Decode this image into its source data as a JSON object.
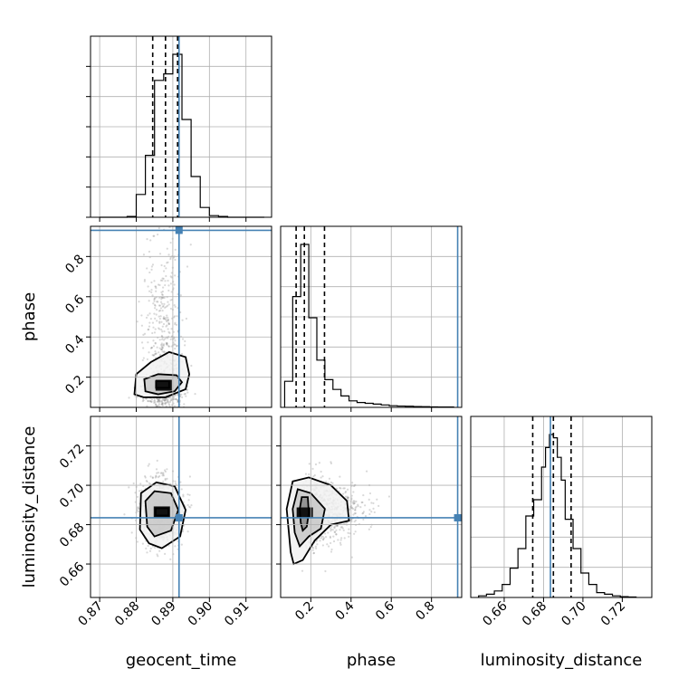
{
  "chart_data": {
    "type": "corner",
    "parameters": [
      "geocent_time",
      "phase",
      "luminosity_distance"
    ],
    "axis_labels": {
      "geocent_time": "geocent_time",
      "phase": "phase",
      "luminosity_distance": "luminosity_distance"
    },
    "ranges": {
      "geocent_time": [
        0.8675,
        0.917
      ],
      "phase": [
        0.05,
        0.95
      ],
      "luminosity_distance": [
        0.643,
        0.735
      ]
    },
    "ticks": {
      "geocent_time": [
        0.87,
        0.88,
        0.89,
        0.9,
        0.91
      ],
      "phase": [
        0.2,
        0.4,
        0.6,
        0.8
      ],
      "luminosity_distance": [
        0.66,
        0.68,
        0.7,
        0.72
      ]
    },
    "tick_labels": {
      "geocent_time": [
        "0.87",
        "0.88",
        "0.89",
        "0.90",
        "0.91"
      ],
      "phase": [
        "0.2",
        "0.4",
        "0.6",
        "0.8"
      ],
      "luminosity_distance": [
        "0.66",
        "0.68",
        "0.70",
        "0.72"
      ]
    },
    "truths": {
      "geocent_time": 0.8917,
      "phase": 0.93,
      "luminosity_distance": 0.6835
    },
    "quantiles": {
      "geocent_time": [
        0.8845,
        0.888,
        0.8913
      ],
      "phase": [
        0.127,
        0.168,
        0.268
      ],
      "luminosity_distance": [
        0.6745,
        0.685,
        0.694
      ]
    },
    "histograms": {
      "geocent_time": {
        "bin_edges": [
          0.87,
          0.8725,
          0.875,
          0.8775,
          0.88,
          0.8825,
          0.885,
          0.8875,
          0.89,
          0.8925,
          0.895,
          0.8975,
          0.9,
          0.9025,
          0.905,
          0.9075,
          0.91,
          0.9125,
          0.915
        ],
        "counts": [
          0.0,
          0.0,
          0.0,
          0.005,
          0.14,
          0.38,
          0.84,
          0.88,
          1.0,
          0.6,
          0.25,
          0.06,
          0.01,
          0.005,
          0.0,
          0.0,
          0.0,
          0.0
        ],
        "ymax": 1.0
      },
      "phase": {
        "bin_edges": [
          0.07,
          0.11,
          0.15,
          0.19,
          0.23,
          0.27,
          0.31,
          0.35,
          0.39,
          0.43,
          0.47,
          0.51,
          0.55,
          0.59,
          0.63,
          0.67,
          0.71,
          0.75,
          0.79,
          0.83,
          0.87,
          0.91
        ],
        "counts": [
          0.16,
          0.68,
          1.0,
          0.55,
          0.29,
          0.17,
          0.11,
          0.07,
          0.04,
          0.03,
          0.025,
          0.02,
          0.015,
          0.01,
          0.008,
          0.007,
          0.005,
          0.004,
          0.003,
          0.002,
          0.002
        ],
        "ymax": 1.0
      },
      "luminosity_distance": {
        "bin_edges": [
          0.647,
          0.651,
          0.655,
          0.659,
          0.663,
          0.667,
          0.671,
          0.675,
          0.679,
          0.681,
          0.683,
          0.685,
          0.687,
          0.689,
          0.691,
          0.695,
          0.699,
          0.703,
          0.707,
          0.711,
          0.715,
          0.719,
          0.723,
          0.727
        ],
        "counts": [
          0.01,
          0.02,
          0.04,
          0.08,
          0.18,
          0.3,
          0.5,
          0.6,
          0.8,
          0.92,
          1.0,
          0.98,
          0.86,
          0.72,
          0.48,
          0.3,
          0.15,
          0.08,
          0.03,
          0.02,
          0.01,
          0.005,
          0.003
        ],
        "ymax": 1.0
      }
    },
    "densities": [
      {
        "x": "geocent_time",
        "y": "phase",
        "center": [
          0.8875,
          0.16
        ],
        "contours": [
          [
            [
              0.8854,
              0.147
            ],
            [
              0.8854,
              0.18
            ],
            [
              0.889,
              0.18
            ],
            [
              0.889,
              0.147
            ]
          ],
          [
            [
              0.8825,
              0.13
            ],
            [
              0.8822,
              0.19
            ],
            [
              0.886,
              0.215
            ],
            [
              0.891,
              0.21
            ],
            [
              0.8925,
              0.175
            ],
            [
              0.8905,
              0.13
            ],
            [
              0.886,
              0.115
            ]
          ],
          [
            [
              0.8795,
              0.115
            ],
            [
              0.88,
              0.215
            ],
            [
              0.884,
              0.275
            ],
            [
              0.889,
              0.325
            ],
            [
              0.8935,
              0.3
            ],
            [
              0.8945,
              0.215
            ],
            [
              0.8935,
              0.14
            ],
            [
              0.888,
              0.1
            ],
            [
              0.882,
              0.1
            ]
          ]
        ]
      },
      {
        "x": "geocent_time",
        "y": "luminosity_distance",
        "center": [
          0.887,
          0.6865
        ],
        "contours": [
          [
            [
              0.8853,
              0.6847
            ],
            [
              0.8853,
              0.6883
            ],
            [
              0.8888,
              0.6883
            ],
            [
              0.8888,
              0.6847
            ]
          ],
          [
            [
              0.883,
              0.679
            ],
            [
              0.8825,
              0.692
            ],
            [
              0.885,
              0.697
            ],
            [
              0.8895,
              0.696
            ],
            [
              0.8915,
              0.6875
            ],
            [
              0.8895,
              0.677
            ],
            [
              0.885,
              0.674
            ]
          ],
          [
            [
              0.881,
              0.6775
            ],
            [
              0.8813,
              0.696
            ],
            [
              0.8855,
              0.7015
            ],
            [
              0.8905,
              0.6995
            ],
            [
              0.8935,
              0.6875
            ],
            [
              0.892,
              0.674
            ],
            [
              0.887,
              0.668
            ],
            [
              0.8835,
              0.6705
            ]
          ]
        ]
      },
      {
        "x": "phase",
        "y": "luminosity_distance",
        "center": [
          0.17,
          0.686
        ],
        "contours": [
          [
            [
              0.15,
              0.681
            ],
            [
              0.145,
              0.688
            ],
            [
              0.155,
              0.694
            ],
            [
              0.185,
              0.694
            ],
            [
              0.19,
              0.686
            ],
            [
              0.18,
              0.679
            ],
            [
              0.16,
              0.677
            ]
          ],
          [
            [
              0.12,
              0.676
            ],
            [
              0.11,
              0.688
            ],
            [
              0.135,
              0.698
            ],
            [
              0.2,
              0.696
            ],
            [
              0.27,
              0.688
            ],
            [
              0.25,
              0.678
            ],
            [
              0.19,
              0.674
            ],
            [
              0.145,
              0.669
            ]
          ],
          [
            [
              0.1,
              0.666
            ],
            [
              0.08,
              0.688
            ],
            [
              0.11,
              0.702
            ],
            [
              0.19,
              0.704
            ],
            [
              0.3,
              0.7
            ],
            [
              0.38,
              0.692
            ],
            [
              0.39,
              0.682
            ],
            [
              0.3,
              0.68
            ],
            [
              0.22,
              0.672
            ],
            [
              0.16,
              0.662
            ],
            [
              0.115,
              0.66
            ]
          ]
        ]
      }
    ]
  }
}
